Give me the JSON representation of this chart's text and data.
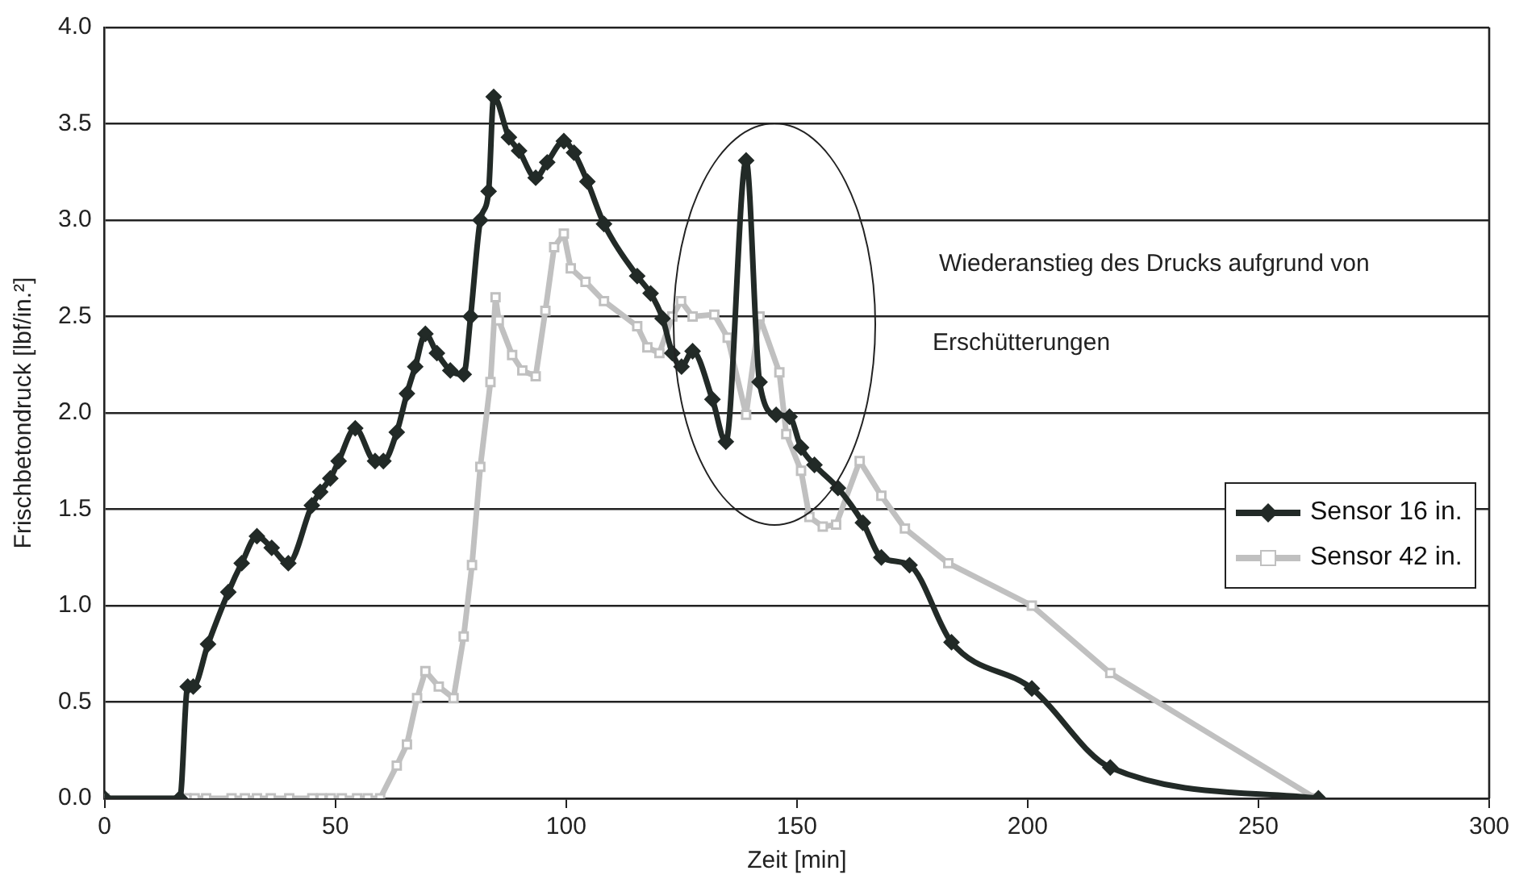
{
  "chart_data": {
    "type": "line",
    "xlabel": "Zeit [min]",
    "ylabel": "Frischbetondruck [lbf/in.²]",
    "xlim": [
      0,
      300
    ],
    "xticks": [
      0,
      50,
      100,
      150,
      200,
      250,
      300
    ],
    "ylim": [
      0,
      4
    ],
    "yticks": [
      {
        "value": 0,
        "label": "0.0"
      },
      {
        "value": 0.5,
        "label": "0.5"
      },
      {
        "value": 1,
        "label": "1.0"
      },
      {
        "value": 1.5,
        "label": "1.5"
      },
      {
        "value": 2,
        "label": "2.0"
      },
      {
        "value": 2.5,
        "label": "2.5"
      },
      {
        "value": 3,
        "label": "3.0"
      },
      {
        "value": 3.5,
        "label": "3.5"
      },
      {
        "value": 4,
        "label": "4.0"
      }
    ],
    "grid": "y",
    "legend": "right",
    "annotations": [
      "Wiederanstieg des Drucks aufgrund von Erschütterungen"
    ],
    "series": [
      {
        "name": "Sensor 16 in.",
        "color": "#222a27",
        "marker": "diamond",
        "x": [
          0,
          16.3,
          18,
          19.2,
          22.4,
          26.8,
          29.7,
          33,
          36.2,
          39.8,
          44.9,
          46.7,
          48.9,
          50.7,
          54.3,
          58.6,
          60.4,
          63.3,
          65.5,
          67.3,
          69.5,
          72,
          74.9,
          77.8,
          79.3,
          81.4,
          83.2,
          84.3,
          87.6,
          89.8,
          93.4,
          95.9,
          99.5,
          101.7,
          104.6,
          108.2,
          115.4,
          118.3,
          120.9,
          123,
          125,
          127.4,
          131.7,
          134.6,
          139,
          141.9,
          145.5,
          148.4,
          150.9,
          153.8,
          158.9,
          164.3,
          168.3,
          174.4,
          183.5,
          200.9,
          217.9,
          263
        ],
        "values": [
          0,
          0,
          0.58,
          0.58,
          0.8,
          1.07,
          1.22,
          1.36,
          1.3,
          1.22,
          1.52,
          1.59,
          1.66,
          1.75,
          1.92,
          1.75,
          1.75,
          1.9,
          2.1,
          2.24,
          2.41,
          2.31,
          2.22,
          2.2,
          2.5,
          3.0,
          3.15,
          3.64,
          3.43,
          3.36,
          3.22,
          3.3,
          3.41,
          3.35,
          3.2,
          2.98,
          2.71,
          2.62,
          2.49,
          2.31,
          2.24,
          2.32,
          2.07,
          1.85,
          3.31,
          2.16,
          1.99,
          1.98,
          1.82,
          1.73,
          1.61,
          1.43,
          1.25,
          1.21,
          0.81,
          0.57,
          0.16,
          0
        ]
      },
      {
        "name": "Sensor 42 in.",
        "color": "#c0c0c0",
        "marker": "square",
        "x": [
          0,
          17.7,
          19.5,
          22,
          27.5,
          30.4,
          33,
          36,
          40,
          45,
          47,
          49,
          51.4,
          54.7,
          57,
          59.7,
          63.3,
          65.5,
          67.7,
          69.5,
          72.4,
          75.6,
          77.8,
          79.6,
          81.4,
          83.6,
          84.7,
          85.4,
          88.3,
          90.5,
          93.4,
          95.5,
          97.4,
          99.5,
          101,
          104.2,
          108.2,
          115.4,
          117.6,
          120.2,
          123,
          124.9,
          127.4,
          132.1,
          135,
          139,
          141.9,
          146.2,
          147.7,
          150.9,
          152.7,
          155.6,
          158.5,
          163.6,
          168.3,
          173.4,
          182.8,
          200.9,
          217.9,
          262.4
        ],
        "values": [
          0,
          0,
          0,
          0,
          0,
          0,
          0,
          0,
          0,
          0,
          0,
          0,
          0,
          0,
          0,
          0,
          0.17,
          0.28,
          0.52,
          0.66,
          0.58,
          0.52,
          0.84,
          1.21,
          1.72,
          2.16,
          2.6,
          2.48,
          2.3,
          2.22,
          2.19,
          2.53,
          2.86,
          2.93,
          2.75,
          2.68,
          2.58,
          2.45,
          2.34,
          2.31,
          2.5,
          2.58,
          2.5,
          2.51,
          2.39,
          1.99,
          2.5,
          2.21,
          1.89,
          1.7,
          1.46,
          1.41,
          1.42,
          1.75,
          1.57,
          1.4,
          1.22,
          1.0,
          0.65,
          0
        ]
      }
    ]
  }
}
